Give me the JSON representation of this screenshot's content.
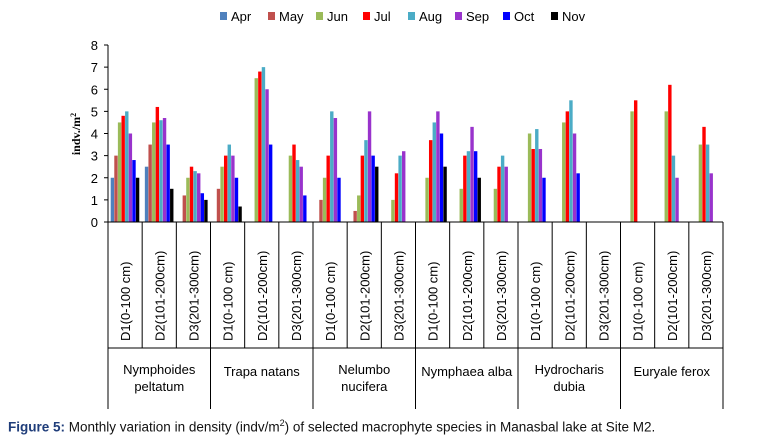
{
  "chart_data": {
    "type": "bar",
    "ylabel": "indv./m",
    "ylabel_sup": "2",
    "ylim": [
      0,
      8
    ],
    "yticks": [
      "0",
      "1",
      "2",
      "3",
      "4",
      "5",
      "6",
      "7",
      "8"
    ],
    "legend_position": "top",
    "series": [
      {
        "name": "Apr",
        "color": "#4f81bd"
      },
      {
        "name": "May",
        "color": "#c0504d"
      },
      {
        "name": "Jun",
        "color": "#9bbb59"
      },
      {
        "name": "Jul",
        "color": "#ff0000"
      },
      {
        "name": "Aug",
        "color": "#4bacc6"
      },
      {
        "name": "Sep",
        "color": "#9933cc"
      },
      {
        "name": "Oct",
        "color": "#0000ff"
      },
      {
        "name": "Nov",
        "color": "#000000"
      }
    ],
    "groups": [
      {
        "species": [
          "Nymphoides",
          "peltatum"
        ],
        "depths": [
          {
            "label": "D1(0-100 cm)",
            "values": [
              2.0,
              3.0,
              4.5,
              4.8,
              5.0,
              4.0,
              2.8,
              2.0
            ]
          },
          {
            "label": "D2(101-200cm)",
            "values": [
              2.5,
              3.5,
              4.5,
              5.2,
              4.6,
              4.7,
              3.5,
              1.5
            ]
          },
          {
            "label": "D3(201-300cm)",
            "values": [
              0,
              1.2,
              2.0,
              2.5,
              2.3,
              2.2,
              1.3,
              1.0
            ]
          }
        ]
      },
      {
        "species": [
          "Trapa natans"
        ],
        "depths": [
          {
            "label": "D1(0-100 cm)",
            "values": [
              0,
              1.5,
              2.5,
              3.0,
              3.5,
              3.0,
              2.0,
              0.7
            ]
          },
          {
            "label": "D2(101-200cm)",
            "values": [
              0,
              0,
              6.5,
              6.8,
              7.0,
              6.0,
              3.5,
              0
            ]
          },
          {
            "label": "D3(201-300cm)",
            "values": [
              0,
              0,
              3.0,
              3.5,
              2.8,
              2.5,
              1.2,
              0
            ]
          }
        ]
      },
      {
        "species": [
          "Nelumbo",
          "nucifera"
        ],
        "depths": [
          {
            "label": "D1(0-100 cm)",
            "values": [
              0,
              1.0,
              2.0,
              3.0,
              5.0,
              4.7,
              2.0,
              0
            ]
          },
          {
            "label": "D2(101-200cm)",
            "values": [
              0,
              0.5,
              1.2,
              3.0,
              3.7,
              5.0,
              3.0,
              2.5
            ]
          },
          {
            "label": "D3(201-300cm)",
            "values": [
              0,
              0,
              1.0,
              2.2,
              3.0,
              3.2,
              0,
              0
            ]
          }
        ]
      },
      {
        "species": [
          "Nymphaea alba"
        ],
        "depths": [
          {
            "label": "D1(0-100 cm)",
            "values": [
              0,
              0,
              2.0,
              3.7,
              4.5,
              5.0,
              4.0,
              2.5
            ]
          },
          {
            "label": "D2(101-200cm)",
            "values": [
              0,
              0,
              1.5,
              3.0,
              3.2,
              4.3,
              3.2,
              2.0
            ]
          },
          {
            "label": "D3(201-300cm)",
            "values": [
              0,
              0,
              1.5,
              2.5,
              3.0,
              2.5,
              0,
              0
            ]
          }
        ]
      },
      {
        "species": [
          "Hydrocharis",
          "dubia"
        ],
        "depths": [
          {
            "label": "D1(0-100 cm)",
            "values": [
              0,
              0,
              4.0,
              3.3,
              4.2,
              3.3,
              2.0,
              0
            ]
          },
          {
            "label": "D2(101-200cm)",
            "values": [
              0,
              0,
              4.5,
              5.0,
              5.5,
              4.0,
              2.2,
              0
            ]
          },
          {
            "label": "D3(201-300cm)",
            "values": [
              0,
              0,
              0,
              0,
              0,
              0,
              0,
              0
            ]
          }
        ]
      },
      {
        "species": [
          "Euryale ferox"
        ],
        "depths": [
          {
            "label": "D1(0-100 cm)",
            "values": [
              0,
              0,
              5.0,
              5.5,
              0,
              0,
              0,
              0
            ]
          },
          {
            "label": "D2(101-200cm)",
            "values": [
              0,
              0,
              5.0,
              6.2,
              3.0,
              2.0,
              0,
              0
            ]
          },
          {
            "label": "D3(201-300cm)",
            "values": [
              0,
              0,
              3.5,
              4.3,
              3.5,
              2.2,
              0,
              0
            ]
          }
        ]
      }
    ]
  },
  "caption": {
    "figure_label": "Figure 5:",
    "text_before_sup": " Monthly variation in density (indv/m",
    "sup": "2",
    "text_after_sup": ") of selected macrophyte species in Manasbal lake at Site M2."
  }
}
